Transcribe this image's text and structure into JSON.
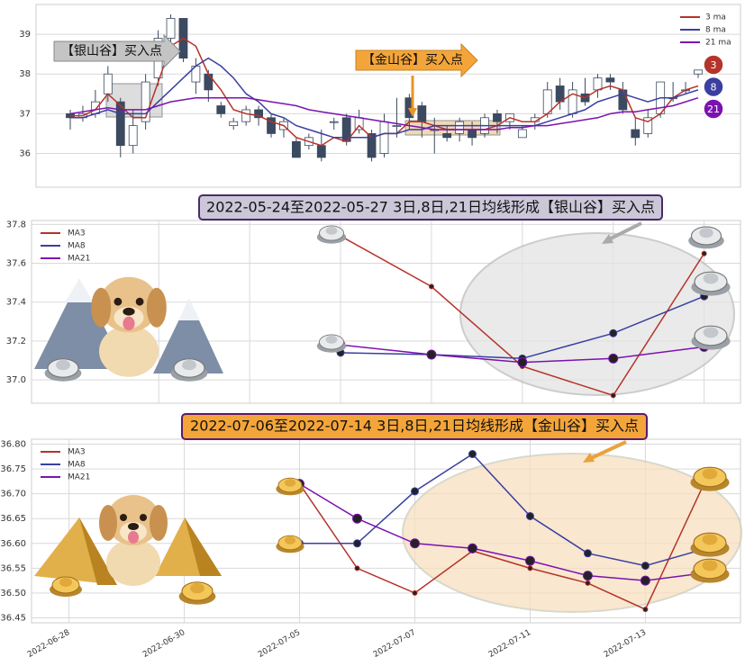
{
  "chart_data": [
    {
      "type": "candlestick",
      "open": [
        37.0,
        36.9,
        37.0,
        37.5,
        37.3,
        36.2,
        36.8,
        37.9,
        38.9,
        39.4,
        37.8,
        38.0,
        37.2,
        36.7,
        36.8,
        37.1,
        36.9,
        36.6,
        36.3,
        36.2,
        36.2,
        36.8,
        36.9,
        36.6,
        36.5,
        36.0,
        36.7,
        37.4,
        37.2,
        36.6,
        36.5,
        36.5,
        36.6,
        36.5,
        37.0,
        36.8,
        36.4,
        36.8,
        37.0,
        37.7,
        37.0,
        37.5,
        37.6,
        37.9,
        37.6,
        36.6,
        36.5,
        37.0,
        37.4,
        37.6,
        38.0
      ],
      "close": [
        36.9,
        37.0,
        37.3,
        38.0,
        36.2,
        36.7,
        37.8,
        38.9,
        39.4,
        38.4,
        38.2,
        37.6,
        37.0,
        36.8,
        37.1,
        36.9,
        36.5,
        36.8,
        35.9,
        36.4,
        35.9,
        36.8,
        36.3,
        36.9,
        35.9,
        36.8,
        36.7,
        36.9,
        36.8,
        36.6,
        36.4,
        36.8,
        36.4,
        36.9,
        36.8,
        37.0,
        36.6,
        36.9,
        37.6,
        37.3,
        37.6,
        37.3,
        37.9,
        37.8,
        37.1,
        36.4,
        36.9,
        37.8,
        37.4,
        37.6,
        38.1
      ],
      "high": [
        37.1,
        37.2,
        37.6,
        38.2,
        37.4,
        37.1,
        38.0,
        39.1,
        39.5,
        39.4,
        38.4,
        38.1,
        37.3,
        36.9,
        37.2,
        37.2,
        37.0,
        36.9,
        36.4,
        36.5,
        36.6,
        36.9,
        37.0,
        37.1,
        36.6,
        37.0,
        37.4,
        37.5,
        37.3,
        36.9,
        36.7,
        36.9,
        36.8,
        37.0,
        37.1,
        37.0,
        36.7,
        37.0,
        37.8,
        37.9,
        37.8,
        37.9,
        38.0,
        38.0,
        37.8,
        36.9,
        37.1,
        37.8,
        37.8,
        37.8,
        38.1
      ],
      "low": [
        36.6,
        36.8,
        36.9,
        37.3,
        35.9,
        36.0,
        36.6,
        37.7,
        38.5,
        38.3,
        37.5,
        37.3,
        36.9,
        36.6,
        36.7,
        36.7,
        36.4,
        36.4,
        35.9,
        36.1,
        35.8,
        36.6,
        36.2,
        36.5,
        35.8,
        35.9,
        36.4,
        36.6,
        36.4,
        36.0,
        36.3,
        36.3,
        36.2,
        36.4,
        36.5,
        36.6,
        36.4,
        36.6,
        36.9,
        37.1,
        36.9,
        37.2,
        37.4,
        37.6,
        37.0,
        36.2,
        36.4,
        36.9,
        37.3,
        37.5,
        37.9
      ],
      "up_color": "#ffffff",
      "down_color": "#3b4a60",
      "ylim": [
        35.15,
        39.75
      ],
      "yticks": [
        36,
        37,
        38,
        39
      ],
      "grid": true,
      "legend": "upper right",
      "series": [
        {
          "name": "3 ma",
          "badge": "3",
          "color": "#b5332a",
          "values": [
            36.95,
            36.95,
            37.1,
            37.5,
            37.2,
            36.9,
            36.9,
            37.8,
            38.7,
            38.9,
            38.7,
            38.0,
            37.6,
            37.1,
            37.0,
            36.95,
            36.8,
            36.7,
            36.4,
            36.3,
            36.2,
            36.4,
            36.3,
            36.7,
            36.4,
            36.5,
            36.5,
            36.8,
            36.8,
            36.7,
            36.6,
            36.6,
            36.6,
            36.6,
            36.7,
            36.9,
            36.8,
            36.8,
            37.0,
            37.3,
            37.5,
            37.4,
            37.6,
            37.7,
            37.6,
            36.9,
            36.8,
            37.0,
            37.4,
            37.6,
            37.7
          ]
        },
        {
          "name": "8 ma",
          "badge": "8",
          "color": "#3a3fa0",
          "values": [
            36.9,
            36.9,
            37.0,
            37.1,
            37.0,
            37.0,
            37.0,
            37.3,
            37.6,
            37.9,
            38.2,
            38.4,
            38.2,
            37.9,
            37.5,
            37.3,
            37.0,
            36.9,
            36.7,
            36.6,
            36.5,
            36.4,
            36.4,
            36.4,
            36.4,
            36.5,
            36.5,
            36.6,
            36.6,
            36.7,
            36.7,
            36.7,
            36.7,
            36.7,
            36.7,
            36.7,
            36.7,
            36.7,
            36.8,
            36.9,
            37.0,
            37.1,
            37.3,
            37.4,
            37.5,
            37.4,
            37.3,
            37.4,
            37.4,
            37.5,
            37.6
          ]
        },
        {
          "name": "21 ma",
          "badge": "21",
          "color": "#7b12b0",
          "values": [
            37.0,
            37.05,
            37.1,
            37.15,
            37.1,
            37.1,
            37.1,
            37.2,
            37.3,
            37.35,
            37.4,
            37.4,
            37.4,
            37.4,
            37.4,
            37.35,
            37.3,
            37.25,
            37.2,
            37.1,
            37.05,
            37.0,
            36.95,
            36.9,
            36.85,
            36.8,
            36.75,
            36.7,
            36.65,
            36.6,
            36.6,
            36.6,
            36.6,
            36.6,
            36.6,
            36.65,
            36.65,
            36.7,
            36.7,
            36.75,
            36.8,
            36.85,
            36.9,
            37.0,
            37.05,
            37.05,
            37.1,
            37.15,
            37.2,
            37.3,
            37.4
          ]
        }
      ],
      "annotations": [
        "【银山谷】买入点",
        "【金山谷】买入点"
      ]
    },
    {
      "type": "line",
      "title": "2022-05-24至2022-05-27 3日,8日,21日均线形成【银山谷】买入点",
      "x": [
        3,
        4,
        5,
        6,
        7
      ],
      "xlim": [
        -0.4,
        7.4
      ],
      "xticks": [
        1,
        2,
        3,
        4,
        5,
        6,
        7
      ],
      "ylim": [
        36.88,
        37.82
      ],
      "yticks": [
        {
          "value": 37,
          "label": "37.0"
        },
        37.2,
        37.4,
        37.6,
        37.8
      ],
      "grid": true,
      "legend": "upper left",
      "series": [
        {
          "name": "MA3",
          "color": "#b5332a",
          "values": [
            37.74,
            37.48,
            37.07,
            36.92,
            37.65
          ]
        },
        {
          "name": "MA8",
          "color": "#3a3fa0",
          "values": [
            37.14,
            37.13,
            37.11,
            37.24,
            37.43
          ]
        },
        {
          "name": "MA21",
          "color": "#7b12b0",
          "values": [
            37.18,
            37.13,
            37.09,
            37.11,
            37.17
          ]
        }
      ]
    },
    {
      "type": "line",
      "title": "2022-07-06至2022-07-14 3日,8日,21日均线形成【金山谷】买入点",
      "categories": [
        "2022-06-28",
        null,
        "2022-06-30",
        null,
        "2022-07-05",
        null,
        "2022-07-07",
        null,
        "2022-07-11",
        null,
        "2022-07-13",
        null
      ],
      "ylim": [
        36.44,
        36.81
      ],
      "yticks": [
        36.45,
        {
          "value": 36.5,
          "label": "36.50"
        },
        36.55,
        {
          "value": 36.6,
          "label": "36.60"
        },
        36.65,
        {
          "value": 36.7,
          "label": "36.70"
        },
        36.75,
        {
          "value": 36.8,
          "label": "36.80"
        }
      ],
      "grid": true,
      "legend": "upper left",
      "series": [
        {
          "name": "MA3",
          "color": "#b5332a",
          "values": [
            null,
            null,
            null,
            null,
            36.72,
            36.55,
            36.5,
            36.585,
            36.55,
            36.52,
            36.467,
            36.716
          ]
        },
        {
          "name": "MA8",
          "color": "#3a3fa0",
          "values": [
            null,
            null,
            null,
            null,
            36.6,
            36.6,
            36.705,
            36.78,
            36.655,
            36.58,
            36.555,
            36.588
          ]
        },
        {
          "name": "MA21",
          "color": "#7b12b0",
          "values": [
            null,
            null,
            null,
            null,
            36.72,
            36.65,
            36.6,
            36.59,
            36.565,
            36.535,
            36.525,
            36.54
          ]
        }
      ]
    }
  ]
}
